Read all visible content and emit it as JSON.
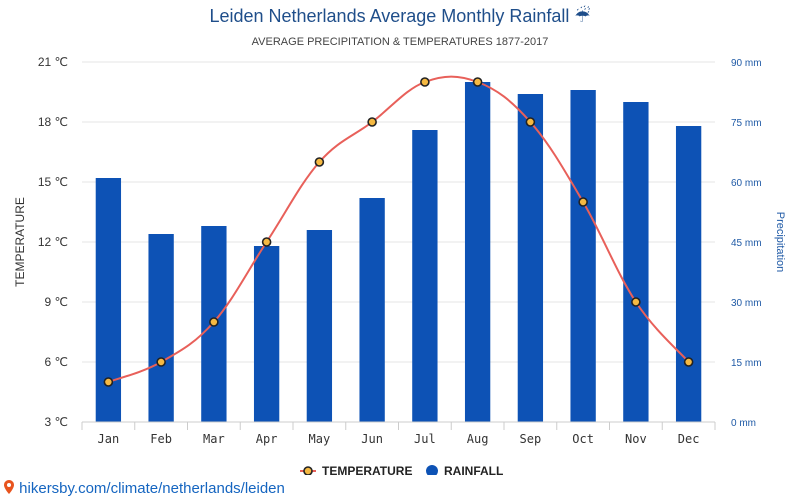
{
  "title": "Leiden Netherlands Average Monthly Rainfall",
  "title_icon": "umbrella-icon",
  "title_icon_glyph": "☔",
  "subtitle": "AVERAGE PRECIPITATION & TEMPERATURES 1877-2017",
  "footer": {
    "icon": "map-pin-icon",
    "text": "hikersby.com/climate/netherlands/leiden"
  },
  "colors": {
    "title": "#1f4e8a",
    "bar": "#0d52b5",
    "line": "#e8605a",
    "marker_fill": "#f5b942",
    "marker_stroke": "#222222",
    "grid": "#e6e6e6",
    "right_axis": "#1f5aa6"
  },
  "chart_data": {
    "type": "bar",
    "categories": [
      "Jan",
      "Feb",
      "Mar",
      "Apr",
      "May",
      "Jun",
      "Jul",
      "Aug",
      "Sep",
      "Oct",
      "Nov",
      "Dec"
    ],
    "series": [
      {
        "name": "RAINFALL",
        "type": "bar",
        "axis": "right",
        "values": [
          61,
          47,
          49,
          44,
          48,
          56,
          73,
          85,
          82,
          83,
          80,
          74
        ]
      },
      {
        "name": "TEMPERATURE",
        "type": "line",
        "axis": "left",
        "values": [
          5,
          6,
          8,
          12,
          16,
          18,
          20,
          20,
          18,
          14,
          9,
          6
        ]
      }
    ],
    "y_left": {
      "label": "TEMPERATURE",
      "range": [
        3,
        21
      ],
      "ticks": [
        3,
        6,
        9,
        12,
        15,
        18,
        21
      ],
      "tick_suffix": " ℃"
    },
    "y_right": {
      "label": "Precipitation",
      "range": [
        0,
        90
      ],
      "ticks": [
        0,
        15,
        30,
        45,
        60,
        75,
        90
      ],
      "tick_suffix": " mm"
    },
    "grid": true,
    "legend": {
      "position": "bottom",
      "items": [
        {
          "name": "TEMPERATURE",
          "symbol": "line-marker"
        },
        {
          "name": "RAINFALL",
          "symbol": "circle"
        }
      ]
    }
  }
}
